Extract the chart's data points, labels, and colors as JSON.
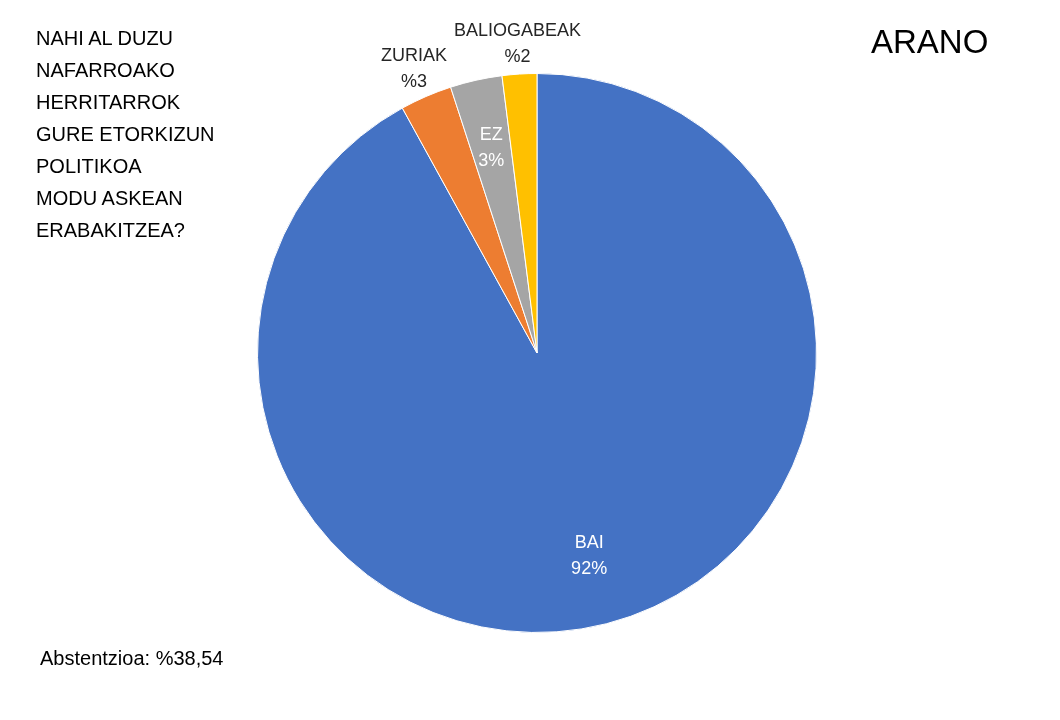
{
  "chart_data": {
    "type": "pie",
    "title": "ARANO",
    "subtitle": "NAHI AL DUZU\nNAFARROAKO\nHERRITARROK\nGURE ETORKIZUN\nPOLITIKOA\nMODU ASKEAN\nERABAKITZEA?",
    "categories": [
      "BAI",
      "ZURIAK",
      "EZ",
      "BALIOGABEAK"
    ],
    "values": [
      92,
      3,
      3,
      2
    ],
    "colors": [
      "#4472c4",
      "#ed7d31",
      "#a5a5a5",
      "#ffc000"
    ],
    "value_labels": [
      "92%",
      "%3",
      "3%",
      "%2"
    ],
    "annotations": [
      "Abstentzioa: %38,54"
    ]
  }
}
